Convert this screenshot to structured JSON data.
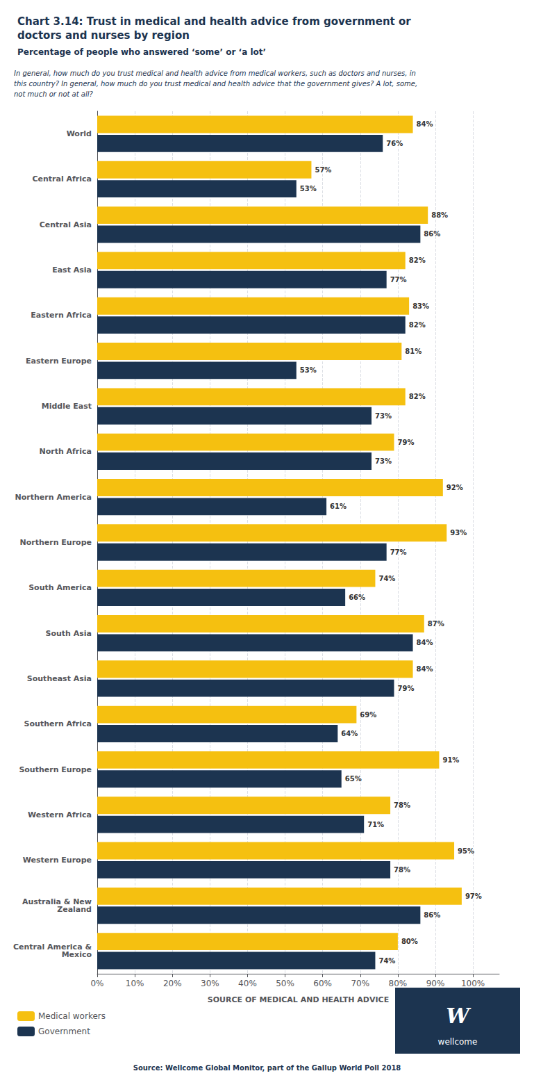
{
  "chart_data": {
    "type": "bar",
    "orientation": "horizontal",
    "title": "Chart 3.14: Trust in medical and health advice from government or\ndoctors and nurses by region",
    "subtitle": "Percentage of people who answered ‘some’ or ‘a lot’",
    "annotations": [
      "In general, how much do you trust medical and health advice from medical workers, such as doctors and nurses, in",
      "this country? In general, how much do you trust medical and health advice that the government gives? A lot, some,",
      "not much or not at all?"
    ],
    "source": "Source: Wellcome Global Monitor, part of the Gallup World Poll 2018",
    "logo": [
      "W",
      "wellcome"
    ],
    "x_label": "SOURCE OF MEDICAL AND HEALTH ADVICE",
    "categories": [
      "World",
      "Central Africa",
      "Central Asia",
      "East Asia",
      "Eastern Africa",
      "Eastern Europe",
      "Middle East",
      "North Africa",
      "Northern America",
      "Northern Europe",
      "South America",
      "South Asia",
      "Southeast Asia",
      "Southern Africa",
      "Southern Europe",
      "Western Africa",
      "Western Europe",
      "Australia & New\nZealand",
      "Central America &\nMexico"
    ],
    "series": [
      {
        "name": "Medical workers",
        "color": "#F5C010",
        "values": [
          84,
          57,
          88,
          82,
          83,
          81,
          82,
          79,
          92,
          93,
          74,
          87,
          84,
          69,
          91,
          78,
          95,
          97,
          80
        ],
        "value_labels": [
          "84%",
          "57%",
          "88%",
          "82%",
          "83%",
          "81%",
          "82%",
          "79%",
          "92%",
          "93%",
          "74%",
          "87%",
          "84%",
          "69%",
          "91%",
          "78%",
          "95%",
          "97%",
          "80%"
        ]
      },
      {
        "name": "Government",
        "color": "#1C3450",
        "values": [
          76,
          53,
          86,
          77,
          82,
          53,
          73,
          73,
          61,
          77,
          66,
          84,
          79,
          64,
          65,
          71,
          78,
          86,
          74
        ],
        "value_labels": [
          "76%",
          "53%",
          "86%",
          "77%",
          "82%",
          "53%",
          "73%",
          "73%",
          "61%",
          "77%",
          "66%",
          "84%",
          "79%",
          "64%",
          "65%",
          "71%",
          "78%",
          "86%",
          "74%"
        ]
      }
    ],
    "xlim": [
      0,
      107
    ],
    "xticks": [
      {
        "value": 0,
        "label": "0%"
      },
      {
        "value": 10,
        "label": "10%"
      },
      {
        "value": 20,
        "label": "20%"
      },
      {
        "value": 30,
        "label": "30%"
      },
      {
        "value": 40,
        "label": "40%"
      },
      {
        "value": 50,
        "label": "50%"
      },
      {
        "value": 60,
        "label": "60%"
      },
      {
        "value": 70,
        "label": "70%"
      },
      {
        "value": 80,
        "label": "80%"
      },
      {
        "value": 90,
        "label": "90%"
      },
      {
        "value": 100,
        "label": "100%"
      }
    ],
    "grid": true,
    "legend": "lower left",
    "data_labels": true
  }
}
